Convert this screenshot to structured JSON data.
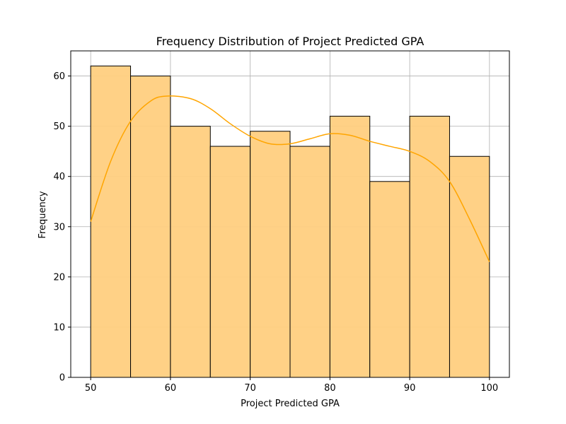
{
  "chart_data": {
    "type": "bar",
    "title": "Frequency Distribution of Project Predicted GPA",
    "xlabel": "Project Predicted GPA",
    "ylabel": "Frequency",
    "bin_edges": [
      50,
      55,
      60,
      65,
      70,
      75,
      80,
      85,
      90,
      95,
      100
    ],
    "values": [
      62,
      60,
      50,
      46,
      49,
      46,
      52,
      39,
      52,
      44
    ],
    "xlim": [
      47.5,
      102.5
    ],
    "ylim": [
      0,
      65
    ],
    "x_ticks": [
      50,
      60,
      70,
      80,
      90,
      100
    ],
    "y_ticks": [
      0,
      10,
      20,
      30,
      40,
      50,
      60
    ],
    "grid": true,
    "legend": "none",
    "bar_color": "#ffcf80",
    "bar_edge_color": "#000000",
    "kde": {
      "color": "#ffa500",
      "x": [
        50,
        52.5,
        55,
        57.5,
        59.5,
        62.5,
        65,
        67.5,
        70,
        72.5,
        75,
        77.5,
        80,
        82.5,
        85,
        87.5,
        90,
        92.5,
        95,
        97.5,
        100
      ],
      "y": [
        31,
        43,
        51,
        55,
        56,
        55.5,
        53.5,
        50.5,
        48,
        46.5,
        46.5,
        47.5,
        48.5,
        48.2,
        47,
        46,
        45,
        43,
        39,
        31.5,
        23
      ]
    }
  }
}
